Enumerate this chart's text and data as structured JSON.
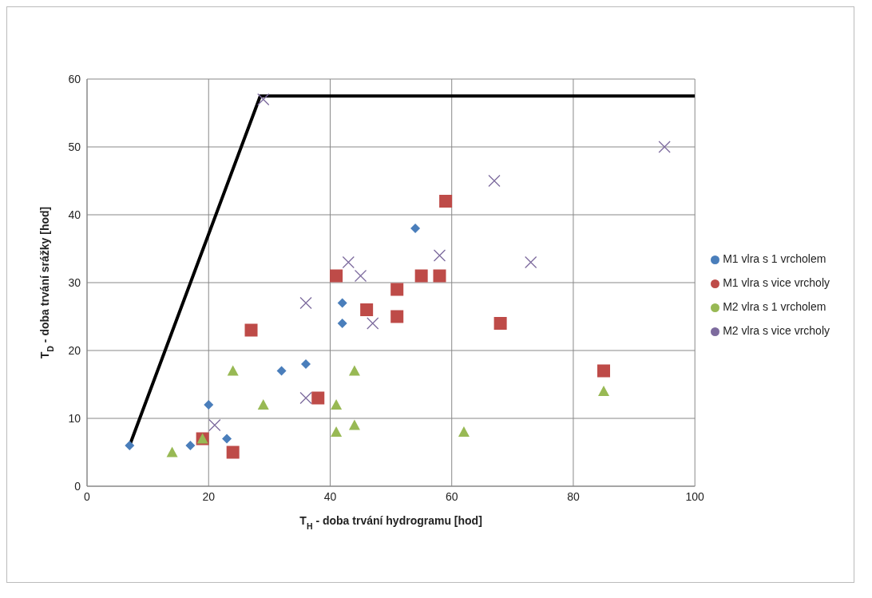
{
  "chart_data": {
    "type": "scatter",
    "xlabel": "T$_{H}$- doba trvání hydrogramu [hod]",
    "ylabel": "T$_{D}$- doba trvání srážky [hod]",
    "xlim": [
      0,
      100
    ],
    "xticks": [
      0,
      20,
      40,
      60,
      80,
      100
    ],
    "ylim": [
      0,
      60
    ],
    "yticks": [
      0,
      10,
      20,
      30,
      40,
      50,
      60
    ],
    "grid": true,
    "legend": "right",
    "series": [
      {
        "name": "M1 vlra s 1 vrcholem",
        "color": "#4a7ebb",
        "marker": "diamond",
        "x": [
          7,
          17,
          20,
          23,
          32,
          36,
          42,
          42,
          54
        ],
        "values": [
          6,
          6,
          12,
          7,
          17,
          18,
          27,
          24,
          38
        ]
      },
      {
        "name": "M1 vlra s vice vrcholy",
        "color": "#be4b48",
        "marker": "square",
        "x": [
          19,
          24,
          27,
          38,
          41,
          46,
          51,
          51,
          55,
          58,
          59,
          68,
          85
        ],
        "values": [
          7,
          5,
          23,
          13,
          31,
          26,
          29,
          25,
          31,
          31,
          42,
          24,
          17
        ]
      },
      {
        "name": "M2 vlra s 1 vrcholem",
        "color": "#98b954",
        "marker": "triangle",
        "x": [
          14,
          19,
          24,
          29,
          41,
          41,
          44,
          44,
          62,
          85
        ],
        "values": [
          5,
          7,
          17,
          12,
          12,
          8,
          9,
          17,
          8,
          14
        ]
      },
      {
        "name": "M2 vlra s vice vrcholy",
        "color": "#7d6b9e",
        "marker": "cross",
        "x": [
          21,
          29,
          36,
          36,
          43,
          45,
          47,
          58,
          67,
          73,
          95
        ],
        "values": [
          9,
          57,
          27,
          13,
          33,
          31,
          24,
          34,
          45,
          33,
          50
        ]
      },
      {
        "type": "line",
        "color": "#000000",
        "marker": "none",
        "x": [
          7,
          28.5,
          100
        ],
        "values": [
          6,
          57.5,
          57.5
        ]
      }
    ]
  }
}
